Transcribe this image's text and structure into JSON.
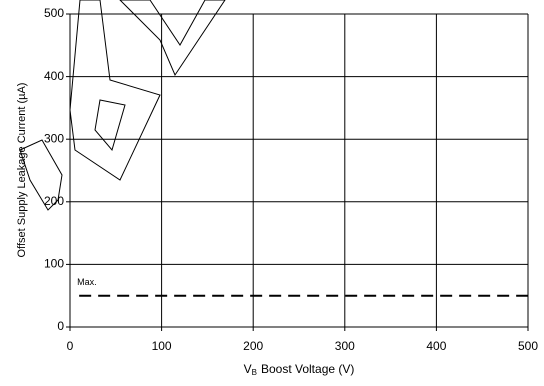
{
  "chart_data": {
    "type": "line",
    "y_label": "Offset Supply Leakage Current (µA)",
    "x_label": {
      "symbol": "V",
      "subscript": "B",
      "text": "Boost Voltage (V)"
    },
    "x": [
      10,
      500
    ],
    "series": [
      {
        "name": "Max.",
        "color": "#000000",
        "dashed": true,
        "values": [
          50,
          50
        ]
      }
    ],
    "xlim": [
      0,
      500
    ],
    "xticks": [
      0,
      100,
      200,
      300,
      400,
      500
    ],
    "ylim": [
      0,
      500
    ],
    "yticks": [
      0,
      100,
      200,
      300,
      400,
      500
    ],
    "grid": true
  }
}
